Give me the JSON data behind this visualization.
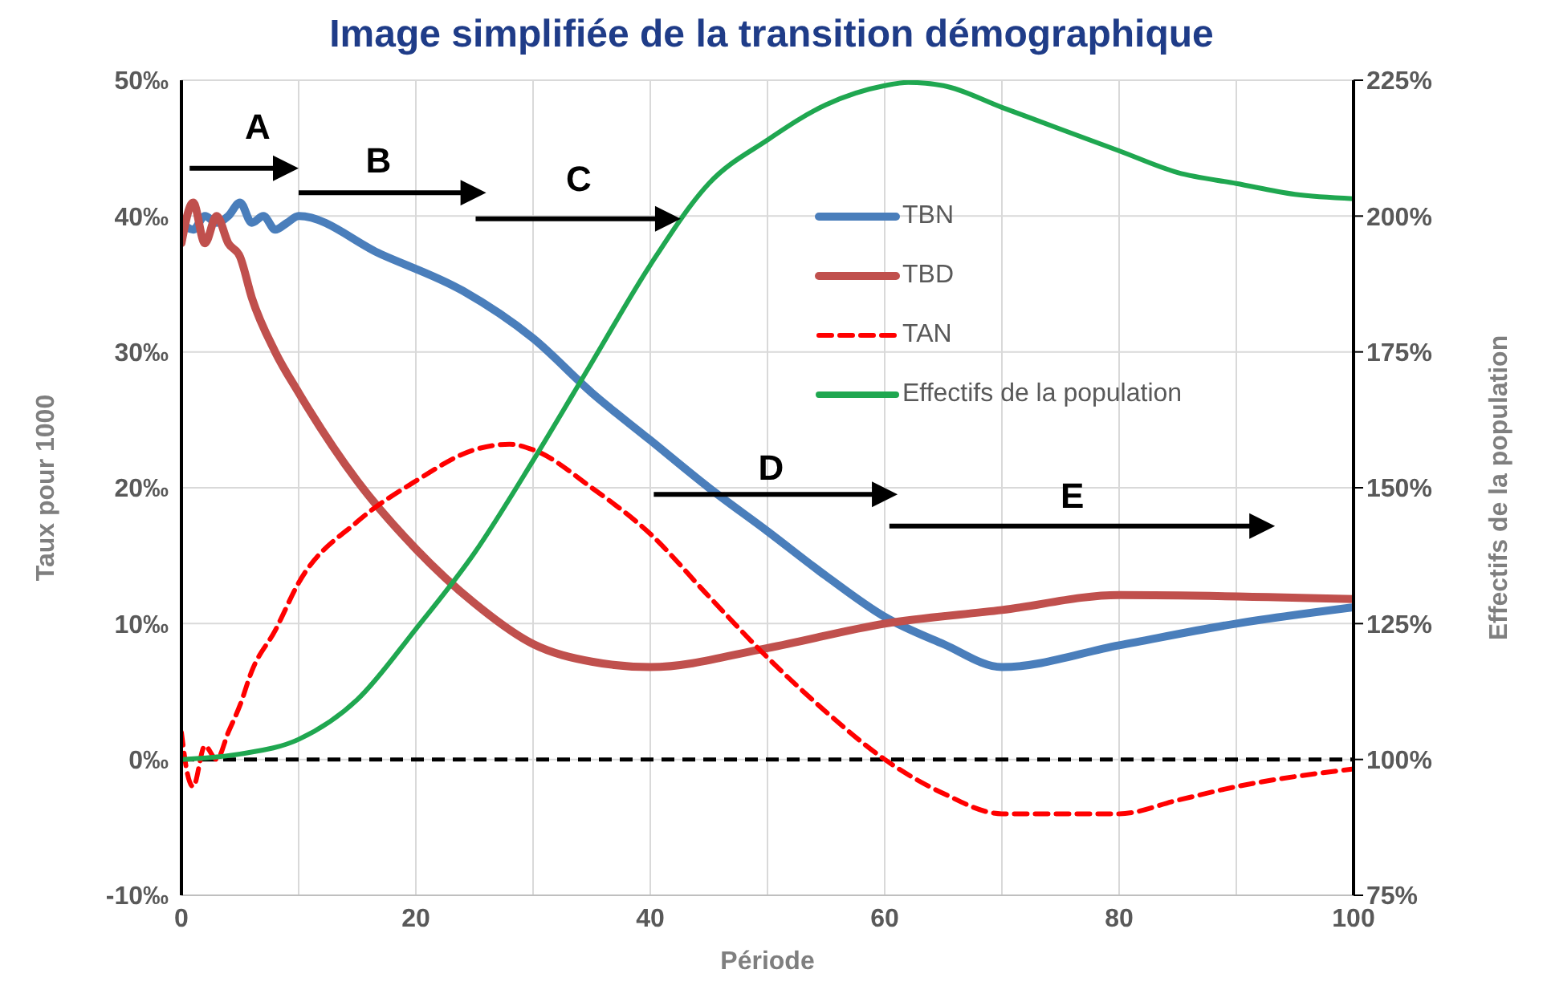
{
  "chart_data": {
    "type": "line",
    "title": "Image simplifiée de la transition démographique",
    "xlabel": "Période",
    "ylabel": "Taux pour 1000",
    "y2label": "Effectifs de la population",
    "xlim": [
      0,
      100
    ],
    "xticks": [
      0,
      {
        "value": 10,
        "label": null
      },
      20,
      {
        "value": 30,
        "label": null
      },
      40,
      {
        "value": 50,
        "label": null
      },
      60,
      {
        "value": 70,
        "label": null
      },
      80,
      {
        "value": 90,
        "label": null
      },
      100
    ],
    "ylim": [
      -10,
      50
    ],
    "yticks": [
      {
        "value": -10,
        "label": "-10‰"
      },
      {
        "value": 0,
        "label": "0‰"
      },
      {
        "value": 10,
        "label": "10‰"
      },
      {
        "value": 20,
        "label": "20‰"
      },
      {
        "value": 30,
        "label": "30‰"
      },
      {
        "value": 40,
        "label": "40‰"
      },
      {
        "value": 50,
        "label": "50‰"
      }
    ],
    "y2lim": [
      75,
      225
    ],
    "y2ticks": [
      {
        "value": 75,
        "label": "75%"
      },
      {
        "value": 100,
        "label": "100%"
      },
      {
        "value": 125,
        "label": "125%"
      },
      {
        "value": 150,
        "label": "150%"
      },
      {
        "value": 175,
        "label": "175%"
      },
      {
        "value": 200,
        "label": "200%"
      },
      {
        "value": 225,
        "label": "225%"
      }
    ],
    "grid": true,
    "legend": "top right",
    "marker": "none",
    "series": [
      {
        "name": "TBN",
        "color": "#4a7ebb",
        "line_style": "solid",
        "x": [
          0,
          1,
          2,
          3,
          4,
          5,
          6,
          7,
          8,
          9,
          10,
          17,
          24,
          30,
          35,
          40,
          45,
          50,
          55,
          60,
          65,
          70,
          80,
          90,
          100
        ],
        "values": [
          39.5,
          39,
          40,
          39.5,
          40,
          41,
          39.5,
          40,
          39,
          39.5,
          40,
          37.2,
          34.5,
          31,
          27,
          23.5,
          20,
          16.8,
          13.5,
          10.5,
          8.5,
          6.8,
          8.4,
          10,
          11.2
        ]
      },
      {
        "name": "TBD",
        "color": "#c0504d",
        "line_style": "solid",
        "x": [
          0,
          1,
          2,
          3,
          4,
          5,
          6,
          8,
          10,
          15,
          20,
          25,
          30,
          35,
          40,
          50,
          60,
          70,
          80,
          100
        ],
        "values": [
          38,
          41,
          38,
          40,
          38,
          37,
          34,
          30,
          27,
          20.5,
          15.5,
          11.5,
          8.5,
          7.2,
          6.8,
          8.2,
          10,
          11,
          12.1,
          11.8
        ]
      },
      {
        "name": "TAN",
        "color": "#ff0000",
        "line_style": "dashed",
        "x": [
          0,
          0.5,
          1,
          2,
          3,
          4,
          5,
          6,
          8,
          10,
          15,
          20,
          25,
          28,
          30,
          35,
          40,
          45,
          50,
          55,
          60,
          65,
          70,
          80,
          85,
          90,
          100
        ],
        "values": [
          2,
          -1,
          -2,
          1,
          0,
          2,
          4,
          6.5,
          9.5,
          13,
          17.5,
          20.5,
          22.8,
          23.2,
          22.8,
          20,
          16.6,
          12,
          7.5,
          3.5,
          0,
          -2.5,
          -4,
          -4,
          -3,
          -2,
          -0.7
        ]
      },
      {
        "name": "Effectifs de la population",
        "color": "#1fa750",
        "line_style": "solid",
        "axis": "y2",
        "x": [
          0,
          5,
          10,
          15,
          20,
          25,
          30,
          35,
          40,
          45,
          50,
          55,
          60,
          62,
          65,
          70,
          75,
          80,
          85,
          90,
          95,
          100
        ],
        "values": [
          100,
          101,
          103.7,
          111,
          124,
          138,
          155,
          173,
          191,
          206,
          214,
          220.5,
          224,
          224.6,
          224,
          220,
          216,
          212,
          208,
          206,
          204,
          203.2
        ]
      }
    ],
    "ref_lines": [
      {
        "axis": "y",
        "value": 0,
        "color": "#000000",
        "line_style": "dashed"
      }
    ],
    "annotations": [
      "A",
      "B",
      "C",
      "D",
      "E"
    ]
  }
}
